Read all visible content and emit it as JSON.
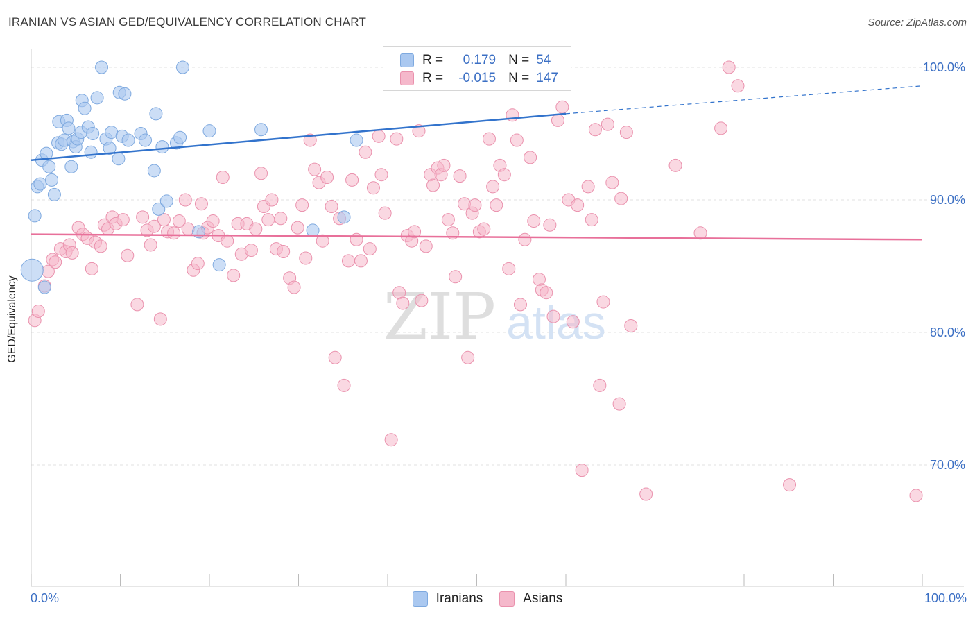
{
  "header": {
    "title": "IRANIAN VS ASIAN GED/EQUIVALENCY CORRELATION CHART",
    "source": "Source: ZipAtlas.com"
  },
  "watermark": {
    "zip": "ZIP",
    "atlas": "atlas"
  },
  "legend_box": {
    "rows": [
      {
        "r_label": "R =",
        "r_value": "0.179",
        "n_label": "N =",
        "n_value": "54",
        "color": "#aac8f0"
      },
      {
        "r_label": "R =",
        "r_value": "-0.015",
        "n_label": "N =",
        "n_value": "147",
        "color": "#f5b8cb"
      }
    ]
  },
  "bottom_legend": {
    "iranians": "Iranians",
    "asians": "Asians"
  },
  "colors": {
    "blue_fill": "#aac8f0",
    "blue_stroke": "#7ea9df",
    "blue_line": "#3273cc",
    "pink_fill": "#f5b8cb",
    "pink_stroke": "#ea91ad",
    "pink_line": "#e8709a",
    "tick_text": "#3b6fc4",
    "grid": "#e2e2e2"
  },
  "chart_data": {
    "type": "scatter",
    "title": "IRANIAN VS ASIAN GED/EQUIVALENCY CORRELATION CHART",
    "xlabel": "",
    "ylabel": "GED/Equivalency",
    "xlim": [
      0,
      100
    ],
    "ylim": [
      59.5,
      100.5
    ],
    "x_tick_labels": [
      "0.0%",
      "100.0%"
    ],
    "y_ticks": [
      100,
      90,
      80,
      70
    ],
    "y_tick_labels": [
      "100.0%",
      "90.0%",
      "80.0%",
      "70.0%"
    ],
    "grid": true,
    "legend_position": "top-center",
    "series": [
      {
        "name": "Iranians",
        "color": "#aac8f0",
        "trend": {
          "x": [
            0,
            60
          ],
          "y": [
            93.0,
            96.5
          ],
          "dashed_to": [
            100,
            98.6
          ]
        },
        "points": [
          [
            0.1,
            84.7
          ],
          [
            0.4,
            88.8
          ],
          [
            0.7,
            91.0
          ],
          [
            1.0,
            91.2
          ],
          [
            1.2,
            93.0
          ],
          [
            1.5,
            83.4
          ],
          [
            1.7,
            93.5
          ],
          [
            2.0,
            92.5
          ],
          [
            2.3,
            91.5
          ],
          [
            2.6,
            90.4
          ],
          [
            3.0,
            94.3
          ],
          [
            3.1,
            95.9
          ],
          [
            3.4,
            94.2
          ],
          [
            3.7,
            94.5
          ],
          [
            4.0,
            96.0
          ],
          [
            4.2,
            95.4
          ],
          [
            4.5,
            92.5
          ],
          [
            4.7,
            94.4
          ],
          [
            5.0,
            94.0
          ],
          [
            5.2,
            94.6
          ],
          [
            5.6,
            95.1
          ],
          [
            5.7,
            97.5
          ],
          [
            6.0,
            96.9
          ],
          [
            6.4,
            95.5
          ],
          [
            6.7,
            93.6
          ],
          [
            6.9,
            95.0
          ],
          [
            7.4,
            97.7
          ],
          [
            7.9,
            100.0
          ],
          [
            8.4,
            94.6
          ],
          [
            8.8,
            93.9
          ],
          [
            9.0,
            95.1
          ],
          [
            9.8,
            93.1
          ],
          [
            9.9,
            98.1
          ],
          [
            10.2,
            94.8
          ],
          [
            10.5,
            98.0
          ],
          [
            10.9,
            94.5
          ],
          [
            12.3,
            95.0
          ],
          [
            12.8,
            94.5
          ],
          [
            13.8,
            92.2
          ],
          [
            14.0,
            96.5
          ],
          [
            14.3,
            89.3
          ],
          [
            14.7,
            94.0
          ],
          [
            15.2,
            89.9
          ],
          [
            16.3,
            94.3
          ],
          [
            16.7,
            94.7
          ],
          [
            17.0,
            100.0
          ],
          [
            18.8,
            87.6
          ],
          [
            20.0,
            95.2
          ],
          [
            21.1,
            85.1
          ],
          [
            25.8,
            95.3
          ],
          [
            31.6,
            87.7
          ],
          [
            35.1,
            88.7
          ],
          [
            36.5,
            94.5
          ],
          [
            50.5,
            100.0
          ]
        ]
      },
      {
        "name": "Asians",
        "color": "#f5b8cb",
        "trend": {
          "x": [
            0,
            100
          ],
          "y": [
            87.4,
            87.0
          ]
        },
        "points": [
          [
            0.4,
            80.9
          ],
          [
            0.8,
            81.6
          ],
          [
            1.5,
            83.5
          ],
          [
            1.9,
            84.6
          ],
          [
            2.4,
            85.5
          ],
          [
            2.7,
            85.3
          ],
          [
            3.3,
            86.3
          ],
          [
            3.9,
            86.1
          ],
          [
            4.3,
            86.6
          ],
          [
            4.6,
            86.0
          ],
          [
            5.3,
            87.9
          ],
          [
            5.8,
            87.4
          ],
          [
            6.3,
            87.1
          ],
          [
            6.8,
            84.8
          ],
          [
            7.2,
            86.8
          ],
          [
            7.8,
            86.5
          ],
          [
            8.2,
            88.1
          ],
          [
            8.6,
            87.8
          ],
          [
            9.1,
            88.7
          ],
          [
            9.5,
            88.2
          ],
          [
            10.3,
            88.5
          ],
          [
            10.8,
            85.8
          ],
          [
            11.9,
            82.1
          ],
          [
            12.5,
            88.7
          ],
          [
            13.0,
            87.7
          ],
          [
            13.4,
            86.6
          ],
          [
            13.8,
            88.0
          ],
          [
            14.5,
            81.0
          ],
          [
            14.9,
            88.5
          ],
          [
            15.3,
            87.6
          ],
          [
            16.0,
            87.5
          ],
          [
            16.6,
            88.4
          ],
          [
            17.3,
            90.0
          ],
          [
            17.6,
            87.8
          ],
          [
            18.2,
            84.7
          ],
          [
            18.7,
            85.2
          ],
          [
            19.3,
            87.5
          ],
          [
            19.1,
            89.7
          ],
          [
            19.8,
            87.9
          ],
          [
            20.4,
            88.4
          ],
          [
            21.0,
            87.3
          ],
          [
            21.5,
            91.7
          ],
          [
            22.0,
            86.9
          ],
          [
            22.7,
            84.3
          ],
          [
            23.2,
            88.2
          ],
          [
            23.6,
            85.9
          ],
          [
            24.2,
            88.2
          ],
          [
            24.7,
            86.2
          ],
          [
            25.2,
            87.8
          ],
          [
            25.8,
            92.0
          ],
          [
            26.1,
            89.5
          ],
          [
            26.6,
            88.5
          ],
          [
            27.0,
            90.0
          ],
          [
            27.5,
            86.3
          ],
          [
            28.0,
            88.6
          ],
          [
            28.3,
            86.1
          ],
          [
            29.0,
            84.1
          ],
          [
            29.5,
            83.4
          ],
          [
            29.9,
            87.9
          ],
          [
            30.4,
            89.6
          ],
          [
            30.8,
            85.6
          ],
          [
            31.3,
            94.5
          ],
          [
            31.8,
            92.3
          ],
          [
            32.3,
            91.3
          ],
          [
            32.7,
            86.9
          ],
          [
            33.2,
            91.7
          ],
          [
            33.7,
            89.5
          ],
          [
            34.1,
            78.1
          ],
          [
            34.6,
            88.6
          ],
          [
            35.1,
            76.0
          ],
          [
            35.6,
            85.4
          ],
          [
            36.0,
            91.5
          ],
          [
            36.5,
            87.0
          ],
          [
            37.0,
            85.4
          ],
          [
            37.5,
            93.6
          ],
          [
            38.0,
            86.3
          ],
          [
            38.4,
            90.9
          ],
          [
            39.0,
            94.8
          ],
          [
            39.3,
            91.9
          ],
          [
            39.7,
            89.0
          ],
          [
            40.4,
            71.9
          ],
          [
            41.0,
            94.6
          ],
          [
            41.3,
            83.0
          ],
          [
            41.7,
            82.2
          ],
          [
            42.2,
            87.3
          ],
          [
            42.7,
            86.9
          ],
          [
            43.0,
            87.6
          ],
          [
            43.5,
            95.2
          ],
          [
            43.8,
            82.4
          ],
          [
            44.3,
            86.5
          ],
          [
            44.8,
            91.9
          ],
          [
            45.1,
            91.1
          ],
          [
            45.6,
            92.4
          ],
          [
            46.0,
            91.9
          ],
          [
            46.3,
            92.6
          ],
          [
            46.8,
            88.5
          ],
          [
            47.3,
            87.5
          ],
          [
            47.6,
            84.2
          ],
          [
            48.1,
            91.8
          ],
          [
            48.6,
            89.7
          ],
          [
            49.0,
            78.1
          ],
          [
            49.5,
            89.0
          ],
          [
            49.8,
            89.6
          ],
          [
            50.3,
            87.6
          ],
          [
            50.8,
            87.8
          ],
          [
            51.4,
            94.6
          ],
          [
            51.8,
            91.0
          ],
          [
            52.2,
            89.6
          ],
          [
            52.6,
            92.6
          ],
          [
            53.1,
            91.9
          ],
          [
            53.6,
            84.8
          ],
          [
            54.0,
            96.4
          ],
          [
            54.5,
            94.5
          ],
          [
            54.9,
            82.1
          ],
          [
            55.4,
            87.0
          ],
          [
            56.0,
            93.2
          ],
          [
            56.4,
            88.4
          ],
          [
            57.0,
            84.0
          ],
          [
            57.3,
            83.2
          ],
          [
            57.8,
            83.0
          ],
          [
            58.2,
            88.1
          ],
          [
            58.6,
            81.2
          ],
          [
            59.1,
            96.0
          ],
          [
            59.6,
            97.0
          ],
          [
            60.3,
            90.0
          ],
          [
            60.8,
            80.8
          ],
          [
            61.3,
            89.6
          ],
          [
            61.8,
            69.6
          ],
          [
            62.5,
            91.0
          ],
          [
            62.9,
            88.5
          ],
          [
            63.3,
            95.3
          ],
          [
            63.8,
            76.0
          ],
          [
            64.2,
            82.3
          ],
          [
            64.7,
            95.7
          ],
          [
            65.2,
            91.3
          ],
          [
            66.0,
            74.6
          ],
          [
            66.2,
            90.1
          ],
          [
            66.8,
            95.1
          ],
          [
            67.3,
            80.5
          ],
          [
            69.0,
            67.8
          ],
          [
            72.3,
            92.6
          ],
          [
            75.1,
            87.5
          ],
          [
            77.4,
            95.4
          ],
          [
            78.3,
            100.0
          ],
          [
            79.3,
            98.6
          ],
          [
            85.1,
            68.5
          ],
          [
            99.3,
            67.7
          ]
        ]
      }
    ]
  }
}
